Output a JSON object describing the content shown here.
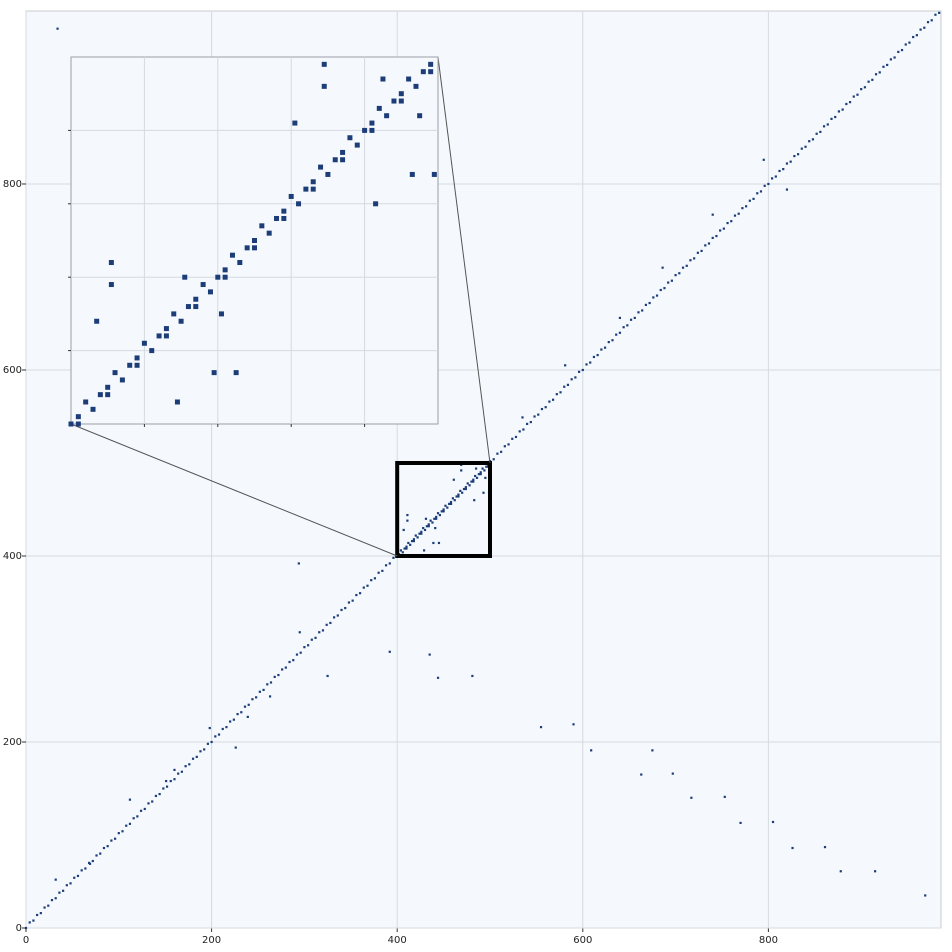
{
  "chart_data": {
    "type": "scatter",
    "color": "#1c3d78",
    "background": "#f5f9fe",
    "grid": true,
    "xlim": [
      0,
      986
    ],
    "ylim": [
      0,
      986
    ],
    "xticks": [
      0,
      200,
      400,
      600,
      800
    ],
    "yticks": [
      0,
      200,
      400,
      600,
      800
    ],
    "inset": {
      "xlim": [
        400,
        500
      ],
      "ylim": [
        400,
        500
      ],
      "xticks": [
        420,
        440,
        460,
        480
      ],
      "yticks": [
        420,
        440,
        460,
        480
      ]
    },
    "x": [
      0,
      8,
      16,
      24,
      32,
      40,
      48,
      56,
      64,
      72,
      80,
      88,
      96,
      104,
      112,
      120,
      128,
      136,
      144,
      152,
      160,
      168,
      176,
      184,
      192,
      200,
      208,
      216,
      224,
      232,
      240,
      248,
      256,
      264,
      272,
      280,
      288,
      296,
      304,
      312,
      320,
      328,
      336,
      344,
      352,
      360,
      368,
      376,
      384,
      392,
      400,
      408,
      416,
      424,
      432,
      440,
      448,
      456,
      464,
      472,
      480,
      488,
      496,
      504,
      512,
      520,
      528,
      536,
      544,
      552,
      560,
      568,
      576,
      584,
      592,
      600,
      608,
      616,
      624,
      632,
      640,
      648,
      656,
      664,
      672,
      680,
      688,
      696,
      704,
      712,
      720,
      728,
      736,
      744,
      752,
      760,
      768,
      776,
      784,
      792,
      800,
      808,
      816,
      824,
      832,
      840,
      848,
      856,
      864,
      872,
      880,
      888,
      896,
      904,
      912,
      920,
      928,
      936,
      944,
      952,
      960,
      968,
      976,
      984,
      4,
      12,
      20,
      28,
      36,
      44,
      52,
      60,
      68,
      76,
      84,
      92,
      100,
      108,
      116,
      124,
      132,
      140,
      148,
      156,
      164,
      172,
      180,
      188,
      196,
      204,
      212,
      220,
      228,
      236,
      244,
      252,
      260,
      268,
      276,
      284,
      292,
      300,
      308,
      316,
      324,
      332,
      340,
      348,
      356,
      364,
      372,
      380,
      388,
      396,
      404,
      412,
      420,
      428,
      436,
      444,
      452,
      460,
      468,
      476,
      484,
      492,
      500,
      508,
      516,
      524,
      532,
      540,
      548,
      556,
      564,
      572,
      580,
      588,
      596,
      604,
      612,
      620,
      628,
      636,
      644,
      652,
      660,
      668,
      676,
      684,
      692,
      700,
      708,
      716,
      724,
      732,
      740,
      748,
      756,
      764,
      772,
      780,
      788,
      796,
      804,
      812,
      820,
      828,
      836,
      844,
      852,
      860,
      868,
      876,
      884,
      892,
      900,
      908,
      916,
      924,
      932,
      940,
      948,
      956,
      964,
      972,
      980,
      402,
      406,
      410,
      414,
      418,
      422,
      426,
      430,
      434,
      438,
      442,
      446,
      450,
      454,
      458,
      462,
      466,
      470,
      474,
      478,
      482,
      486,
      490,
      494,
      498,
      402,
      410,
      418,
      426,
      434,
      442,
      450,
      458,
      466,
      474,
      482,
      490,
      498,
      411,
      411,
      407,
      431,
      441,
      439,
      445,
      429,
      461,
      469,
      469,
      483,
      485,
      495,
      493,
      499,
      34,
      294,
      295,
      392,
      435,
      444,
      481,
      555,
      590,
      609,
      675,
      663,
      697,
      717,
      753,
      770,
      805,
      826,
      861,
      878,
      915,
      969,
      795,
      820,
      740,
      686,
      640,
      581,
      535,
      198,
      151,
      112,
      69,
      32,
      226,
      325,
      263,
      160,
      239
    ],
    "values": [
      0,
      8,
      16,
      24,
      32,
      40,
      48,
      56,
      64,
      72,
      80,
      88,
      96,
      104,
      112,
      120,
      128,
      136,
      144,
      152,
      160,
      168,
      176,
      184,
      192,
      200,
      208,
      216,
      224,
      232,
      240,
      248,
      256,
      264,
      272,
      280,
      288,
      296,
      304,
      312,
      320,
      328,
      336,
      344,
      352,
      360,
      368,
      376,
      384,
      392,
      400,
      408,
      416,
      424,
      432,
      440,
      448,
      456,
      464,
      472,
      480,
      488,
      496,
      504,
      512,
      520,
      528,
      536,
      544,
      552,
      560,
      568,
      576,
      584,
      592,
      600,
      608,
      616,
      624,
      632,
      640,
      648,
      656,
      664,
      672,
      680,
      688,
      696,
      704,
      712,
      720,
      728,
      736,
      744,
      752,
      760,
      768,
      776,
      784,
      792,
      800,
      808,
      816,
      824,
      832,
      840,
      848,
      856,
      864,
      872,
      880,
      888,
      896,
      904,
      912,
      920,
      928,
      936,
      944,
      952,
      960,
      968,
      976,
      984,
      6,
      14,
      22,
      30,
      38,
      46,
      54,
      62,
      70,
      78,
      86,
      94,
      102,
      110,
      118,
      126,
      134,
      142,
      150,
      158,
      166,
      174,
      182,
      190,
      198,
      206,
      214,
      222,
      230,
      238,
      246,
      254,
      262,
      270,
      278,
      286,
      294,
      302,
      310,
      318,
      326,
      334,
      342,
      350,
      358,
      366,
      374,
      382,
      390,
      398,
      406,
      414,
      422,
      430,
      438,
      446,
      454,
      462,
      470,
      478,
      486,
      494,
      502,
      510,
      518,
      526,
      534,
      542,
      550,
      558,
      566,
      574,
      582,
      590,
      598,
      606,
      614,
      622,
      630,
      638,
      646,
      654,
      662,
      670,
      678,
      686,
      694,
      702,
      710,
      718,
      726,
      734,
      742,
      750,
      758,
      766,
      774,
      782,
      790,
      798,
      806,
      814,
      822,
      830,
      838,
      846,
      854,
      862,
      870,
      878,
      886,
      894,
      902,
      910,
      918,
      926,
      934,
      942,
      950,
      958,
      966,
      974,
      982,
      400,
      404,
      408,
      412,
      416,
      420,
      424,
      428,
      432,
      436,
      440,
      444,
      448,
      452,
      456,
      460,
      464,
      468,
      472,
      476,
      480,
      484,
      488,
      492,
      496,
      402,
      410,
      418,
      426,
      434,
      442,
      450,
      458,
      466,
      474,
      482,
      490,
      498,
      444,
      438,
      428,
      440,
      430,
      414,
      414,
      406,
      482,
      498,
      492,
      460,
      494,
      484,
      468,
      468,
      967,
      392,
      318,
      297,
      294,
      269,
      271,
      216,
      219,
      191,
      191,
      165,
      166,
      140,
      141,
      113,
      114,
      86,
      87,
      61,
      61,
      35,
      826,
      794,
      767,
      710,
      656,
      605,
      549,
      215,
      158,
      138,
      69,
      52,
      194,
      271,
      249,
      170,
      227
    ]
  }
}
